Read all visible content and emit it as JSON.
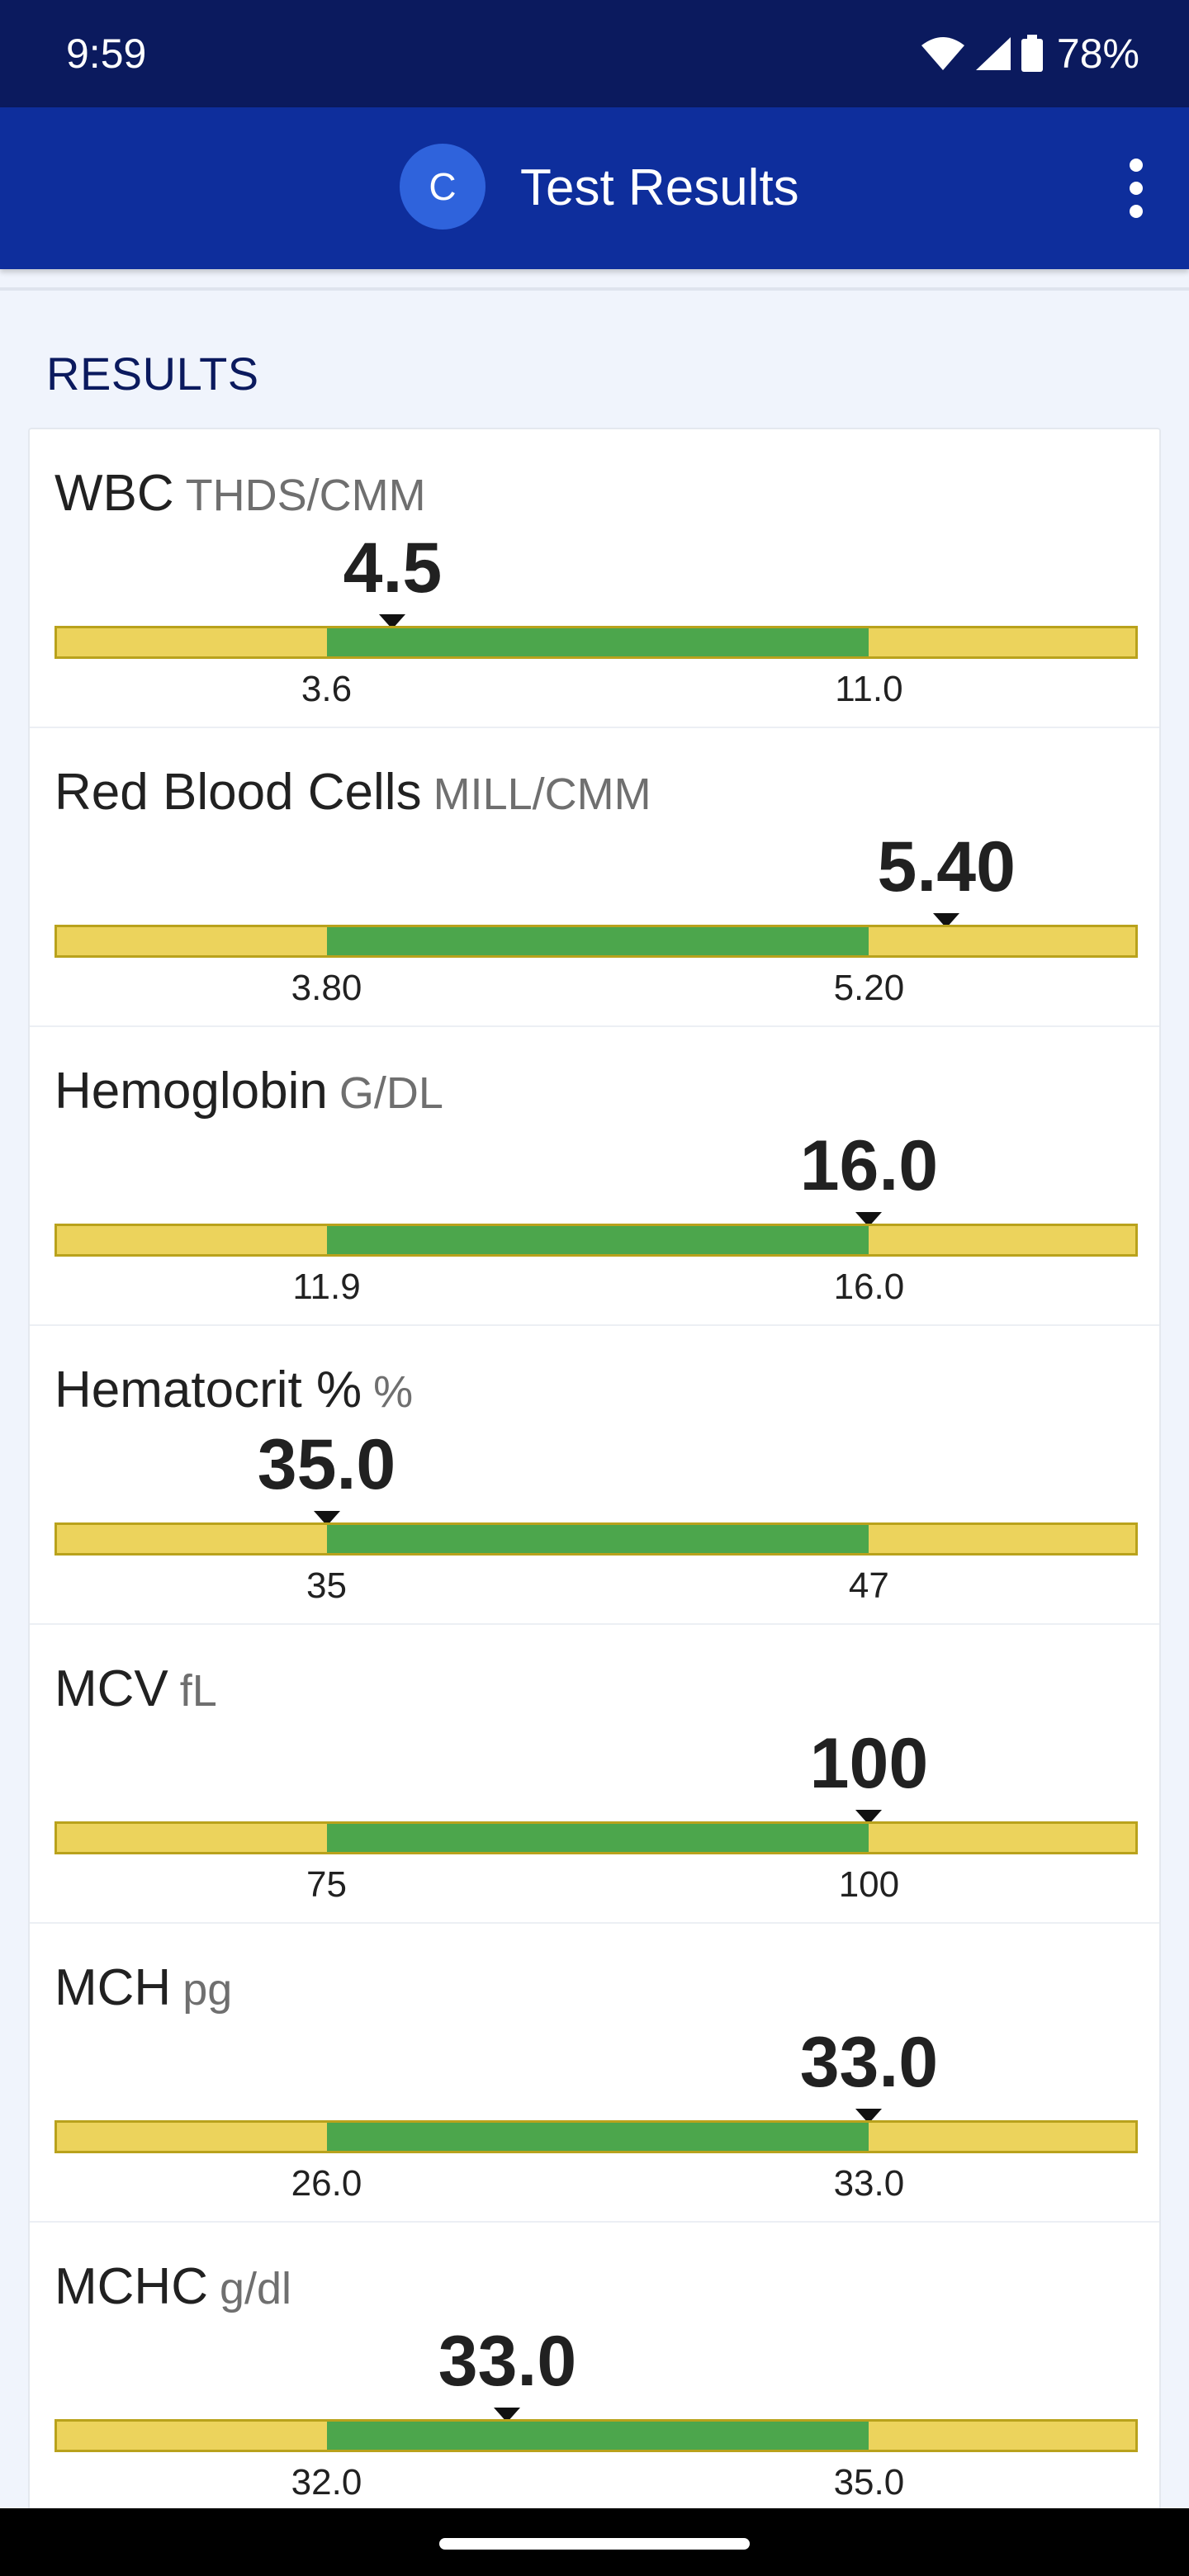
{
  "status_bar": {
    "time": "9:59",
    "battery": "78%",
    "icons": [
      "wifi-icon",
      "signal-icon",
      "battery-icon"
    ]
  },
  "app_bar": {
    "avatar_letter": "C",
    "title": "Test Results",
    "menu_icon": "more-vert-icon"
  },
  "section": {
    "title": "RESULTS"
  },
  "colors": {
    "status_bar": "#0b1a5e",
    "app_bar": "#0e2e9c",
    "normal_range": "#4ca64c",
    "out_of_range": "#ecd35c",
    "avatar": "#2f63dc"
  },
  "results": [
    {
      "name": "WBC",
      "unit": "THDS/CMM",
      "value": "4.5",
      "low": "3.6",
      "high": "11.0",
      "value_num": 4.5,
      "low_num": 3.6,
      "high_num": 11.0
    },
    {
      "name": "Red Blood Cells",
      "unit": "MILL/CMM",
      "value": "5.40",
      "low": "3.80",
      "high": "5.20",
      "value_num": 5.4,
      "low_num": 3.8,
      "high_num": 5.2
    },
    {
      "name": "Hemoglobin",
      "unit": "G/DL",
      "value": "16.0",
      "low": "11.9",
      "high": "16.0",
      "value_num": 16.0,
      "low_num": 11.9,
      "high_num": 16.0
    },
    {
      "name": "Hematocrit %",
      "unit": "%",
      "value": "35.0",
      "low": "35",
      "high": "47",
      "value_num": 35.0,
      "low_num": 35,
      "high_num": 47
    },
    {
      "name": "MCV",
      "unit": "fL",
      "value": "100",
      "low": "75",
      "high": "100",
      "value_num": 100,
      "low_num": 75,
      "high_num": 100
    },
    {
      "name": "MCH",
      "unit": "pg",
      "value": "33.0",
      "low": "26.0",
      "high": "33.0",
      "value_num": 33.0,
      "low_num": 26.0,
      "high_num": 33.0
    },
    {
      "name": "MCHC",
      "unit": "g/dl",
      "value": "33.0",
      "low": "32.0",
      "high": "35.0",
      "value_num": 33.0,
      "low_num": 32.0,
      "high_num": 35.0
    }
  ]
}
